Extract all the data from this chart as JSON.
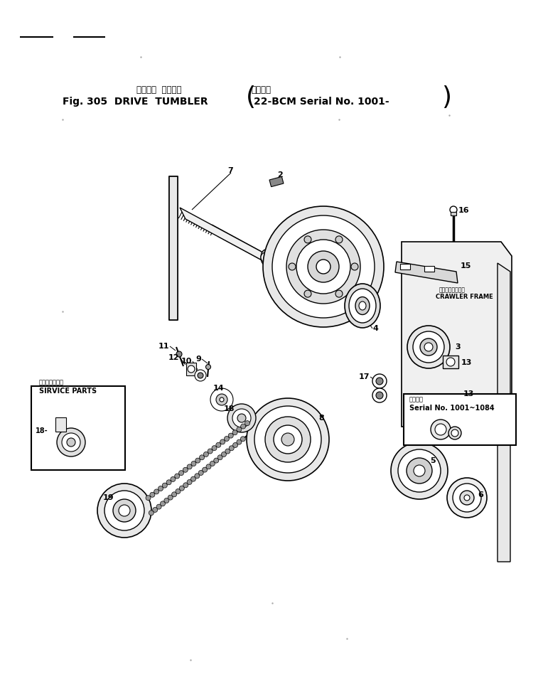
{
  "title_jp": "ドライブ  タンブラ",
  "title_fig": "Fig. 305  DRIVE  TUMBLER",
  "serial_jp": "適用号機",
  "serial_en": "22-BCM Serial No. 1001-",
  "service_jp": "サービスパーツ",
  "service_en": "SIRVICE PARTS",
  "crawler_jp": "クローラフレーム",
  "crawler_en": "CRAWLER FRAME",
  "serial_note_jp": "適用号機",
  "serial_note_en": "Serial No. 1001~1084",
  "lc": "#000000",
  "tc": "#000000",
  "bg": "#ffffff"
}
